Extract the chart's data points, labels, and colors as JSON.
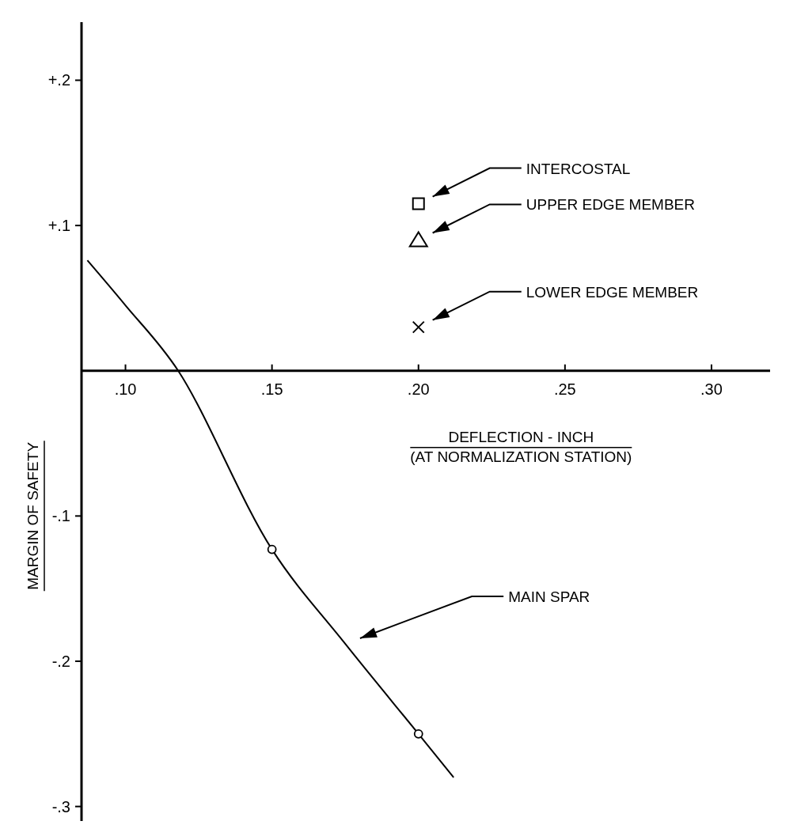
{
  "chart_data": {
    "type": "line",
    "ylabel": "MARGIN OF SAFETY",
    "xlabel": "DEFLECTION - INCH",
    "annotations": [
      "(AT NORMALIZATION STATION)"
    ],
    "xlim": [
      0.085,
      0.32
    ],
    "ylim": [
      -0.31,
      0.24
    ],
    "xticks": [
      {
        "value": 0.1,
        "label": ".10"
      },
      {
        "value": 0.15,
        "label": ".15"
      },
      {
        "value": 0.2,
        "label": ".20"
      },
      {
        "value": 0.25,
        "label": ".25"
      },
      {
        "value": 0.3,
        "label": ".30"
      }
    ],
    "yticks": [
      {
        "value": 0.2,
        "label": "+.2"
      },
      {
        "value": 0.1,
        "label": "+.1"
      },
      {
        "value": -0.1,
        "label": "-.1"
      },
      {
        "value": -0.2,
        "label": "-.2"
      },
      {
        "value": -0.3,
        "label": "-.3"
      }
    ],
    "grid": false,
    "series": [
      {
        "name": "MAIN SPAR",
        "color": "#000000",
        "marker": "none",
        "x": [
          0.087,
          0.1,
          0.118,
          0.15,
          0.175,
          0.2,
          0.212
        ],
        "values": [
          0.076,
          0.045,
          0,
          -0.123,
          -0.188,
          -0.25,
          -0.28
        ]
      },
      {
        "type": "scatter",
        "color": "#000000",
        "marker": "circle",
        "x": [
          0.15,
          0.2
        ],
        "values": [
          -0.123,
          -0.25
        ]
      },
      {
        "name": "INTERCOSTAL",
        "type": "scatter",
        "color": "#000000",
        "marker": "square",
        "x": [
          0.2
        ],
        "values": [
          0.115
        ]
      },
      {
        "name": "UPPER EDGE MEMBER",
        "type": "scatter",
        "color": "#000000",
        "marker": "triangle",
        "x": [
          0.2
        ],
        "values": [
          0.09
        ]
      },
      {
        "name": "LOWER EDGE MEMBER",
        "type": "scatter",
        "color": "#000000",
        "marker": "cross",
        "x": [
          0.2
        ],
        "values": [
          0.03
        ]
      }
    ]
  }
}
